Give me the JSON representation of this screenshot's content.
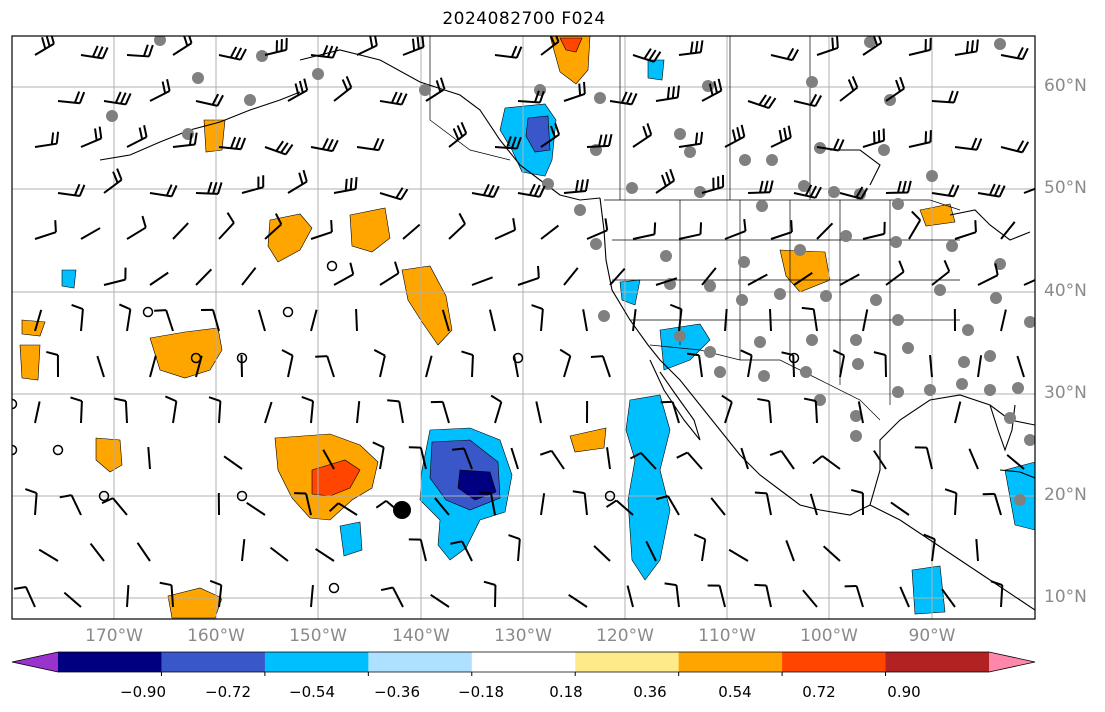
{
  "title": "2024082700 F024",
  "lat_labels": [
    "60°N",
    "50°N",
    "40°N",
    "30°N",
    "20°N",
    "10°N"
  ],
  "lon_labels": [
    "170°W",
    "160°W",
    "150°W",
    "140°W",
    "130°W",
    "120°W",
    "110°W",
    "100°W",
    "90°W"
  ],
  "colorbar": {
    "ticks": [
      "−0.90",
      "−0.72",
      "−0.54",
      "−0.36",
      "−0.18",
      "0.18",
      "0.36",
      "0.54",
      "0.72",
      "0.90"
    ],
    "colors": [
      "#9933cc",
      "#000080",
      "#3a57c9",
      "#00bfff",
      "#aee0ff",
      "#ffffff",
      "#ffea8a",
      "#ffa500",
      "#ff4500",
      "#b22222",
      "#ff88aa"
    ]
  },
  "colors": {
    "positive_light": "#ffea8a",
    "positive": "#ffa500",
    "positive_strong": "#ff4500",
    "negative_light": "#aee0ff",
    "negative": "#00bfff",
    "negative_strong": "#3a57c9",
    "negative_stronger": "#000080",
    "grid": "#b0b0b0",
    "station": "#808080"
  }
}
